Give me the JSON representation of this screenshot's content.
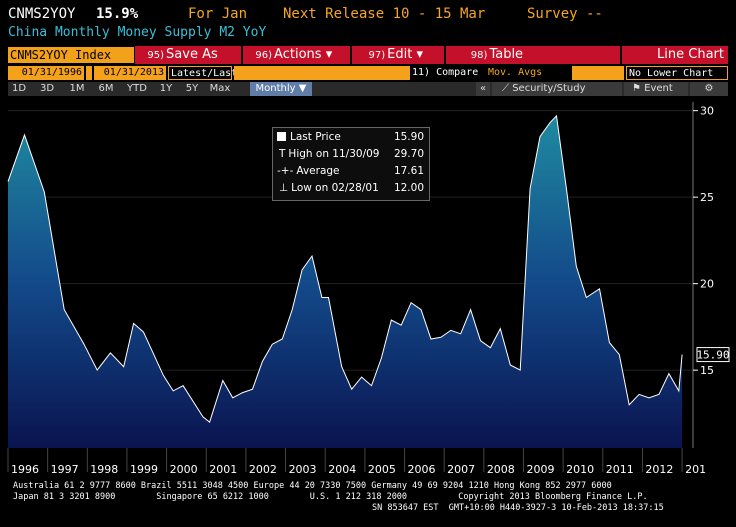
{
  "header": {
    "ticker": "CNMS2YOY",
    "last_value": "15.9%",
    "for_label": "For Jan",
    "next_release": "Next Release 10 - 15 Mar",
    "survey": "Survey --"
  },
  "subtitle": "China Monthly Money Supply M2 YoY",
  "toolbar": {
    "index_label": "CNMS2YOY Index",
    "save": {
      "num": "95)",
      "label": "Save As"
    },
    "actions": {
      "num": "96)",
      "label": "Actions",
      "arrow": "▾"
    },
    "edit": {
      "num": "97)",
      "label": "Edit",
      "arrow": "▾"
    },
    "table": {
      "num": "98)",
      "label": "Table"
    },
    "chart_type": "Line Chart"
  },
  "controls": {
    "start_date": "01/31/1996",
    "end_date": "01/31/2013",
    "range_preset": "Latest/Last",
    "compare": "11) Compare",
    "mov_avgs": "Mov. Avgs",
    "lower_chart": "No Lower Chart"
  },
  "periods": [
    "1D",
    "3D",
    "1M",
    "6M",
    "YTD",
    "1Y",
    "5Y",
    "Max"
  ],
  "frequency": "Monthly ▼",
  "right_tools": {
    "security": "Security/Study",
    "event": "Event",
    "gear": "⚙",
    "arrows": "«"
  },
  "legend": {
    "last_label": "Last Price",
    "last_value": "15.90",
    "high_label": "High on 11/30/09",
    "high_value": "29.70",
    "avg_label": "Average",
    "avg_value": "17.61",
    "low_label": "Low on 02/28/01",
    "low_value": "12.00"
  },
  "footer": {
    "line1": "Australia 61 2 9777 8600 Brazil 5511 3048 4500 Europe 44 20 7330 7500 Germany 49 69 9204 1210 Hong Kong 852 2977 6000",
    "line2": "Japan 81 3 3201 8900        Singapore 65 6212 1000        U.S. 1 212 318 2000          Copyright 2013 Bloomberg Finance L.P.",
    "line3": "SN 853647 EST  GMT+10:00 H440-3927-3 10-Feb-2013 18:37:15"
  },
  "chart_data": {
    "type": "area",
    "title": "China Monthly Money Supply M2 YoY",
    "ylim": [
      10.5,
      30.5
    ],
    "y_ticks": [
      15,
      20,
      25,
      30
    ],
    "y_tick_labels": [
      "15",
      "20",
      "25",
      "30"
    ],
    "x_tick_labels": [
      "1996",
      "1997",
      "1998",
      "1999",
      "2000",
      "2001",
      "2002",
      "2003",
      "2004",
      "2005",
      "2006",
      "2007",
      "2008",
      "2009",
      "2010",
      "2011",
      "2012",
      "201"
    ],
    "last_label": "15.90",
    "grid": true,
    "series": [
      {
        "x": [
          "1996-01",
          "1996-06",
          "1996-12",
          "1997-06",
          "1997-12",
          "1998-04",
          "1998-08",
          "1998-12",
          "1999-03",
          "1999-06",
          "1999-12",
          "2000-03",
          "2000-06",
          "2000-12",
          "2001-02",
          "2001-06",
          "2001-09",
          "2001-12",
          "2002-03",
          "2002-06",
          "2002-09",
          "2002-12",
          "2003-03",
          "2003-06",
          "2003-09",
          "2003-12",
          "2004-02",
          "2004-06",
          "2004-09",
          "2004-12",
          "2005-03",
          "2005-06",
          "2005-09",
          "2005-12",
          "2006-03",
          "2006-06",
          "2006-09",
          "2006-12",
          "2007-03",
          "2007-06",
          "2007-09",
          "2007-12",
          "2008-03",
          "2008-06",
          "2008-09",
          "2008-12",
          "2009-03",
          "2009-06",
          "2009-09",
          "2009-11",
          "2010-02",
          "2010-05",
          "2010-08",
          "2010-12",
          "2011-03",
          "2011-06",
          "2011-09",
          "2011-12",
          "2012-03",
          "2012-06",
          "2012-09",
          "2012-12",
          "2013-01"
        ],
        "values": [
          25.9,
          28.6,
          25.3,
          18.5,
          16.5,
          15.0,
          16.0,
          15.2,
          17.7,
          17.2,
          14.7,
          13.8,
          14.1,
          12.3,
          12.0,
          14.4,
          13.4,
          13.7,
          13.9,
          15.5,
          16.5,
          16.8,
          18.5,
          20.8,
          21.6,
          19.2,
          19.2,
          15.2,
          13.9,
          14.6,
          14.1,
          15.7,
          17.9,
          17.6,
          18.9,
          18.5,
          16.8,
          16.9,
          17.3,
          17.1,
          18.5,
          16.7,
          16.3,
          17.4,
          15.3,
          15.0,
          25.5,
          28.5,
          29.3,
          29.7,
          25.5,
          21.0,
          19.2,
          19.7,
          16.6,
          15.9,
          13.0,
          13.6,
          13.4,
          13.6,
          14.8,
          13.8,
          15.9
        ]
      }
    ]
  }
}
